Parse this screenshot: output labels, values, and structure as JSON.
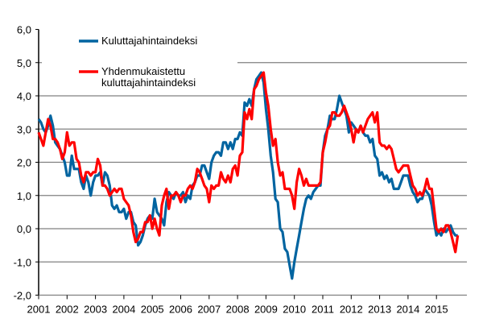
{
  "chart_data": {
    "type": "line",
    "title": "",
    "xlabel": "",
    "ylabel": "",
    "ylim": [
      -2.0,
      6.0
    ],
    "yticks": [
      "6,0",
      "5,0",
      "4,0",
      "3,0",
      "2,0",
      "1,0",
      "0,0",
      "-1,0",
      "-2,0"
    ],
    "ytick_values": [
      6,
      5,
      4,
      3,
      2,
      1,
      0,
      -1,
      -2
    ],
    "xticks": [
      "2001",
      "2002",
      "2003",
      "2004",
      "2005",
      "2006",
      "2007",
      "2008",
      "2009",
      "2010",
      "2011",
      "2012",
      "2013",
      "2014",
      "2015"
    ],
    "x_start": "2001-01",
    "frequency": "monthly",
    "grid": true,
    "legend_placement": "top-left",
    "series": [
      {
        "name": "Kuluttajahintaindeksi",
        "color": "#0064a0",
        "values": [
          3.3,
          3.2,
          3.0,
          2.9,
          3.1,
          3.4,
          3.1,
          2.6,
          2.5,
          2.4,
          2.2,
          2.0,
          1.6,
          1.6,
          2.2,
          1.8,
          1.8,
          1.8,
          1.4,
          1.2,
          1.6,
          1.4,
          1.0,
          1.4,
          1.6,
          1.6,
          1.7,
          1.3,
          1.7,
          1.6,
          1.3,
          0.7,
          0.6,
          0.7,
          0.5,
          0.5,
          0.6,
          0.3,
          0.5,
          0.5,
          0.2,
          0.1,
          -0.5,
          -0.4,
          -0.2,
          0.1,
          0.3,
          0.4,
          0.3,
          0.9,
          0.5,
          0.4,
          0.3,
          0.1,
          0.8,
          1.1,
          1.0,
          0.9,
          1.1,
          1.0,
          1.0,
          1.1,
          0.8,
          1.0,
          0.9,
          1.3,
          1.4,
          1.6,
          1.6,
          1.9,
          1.9,
          1.7,
          1.5,
          2.0,
          2.2,
          2.3,
          2.3,
          2.2,
          2.6,
          2.6,
          2.4,
          2.6,
          2.4,
          2.7,
          2.7,
          2.9,
          2.8,
          3.8,
          3.7,
          3.9,
          3.7,
          4.2,
          4.5,
          4.6,
          4.7,
          4.4,
          3.6,
          3.0,
          2.2,
          1.7,
          0.9,
          0.8,
          0.0,
          -0.1,
          -0.6,
          -0.7,
          -1.1,
          -1.5,
          -1.0,
          -0.6,
          -0.2,
          0.2,
          0.6,
          0.9,
          1.0,
          0.9,
          1.1,
          1.2,
          1.3,
          1.3,
          2.3,
          2.8,
          3.0,
          3.4,
          3.3,
          3.3,
          3.6,
          4.0,
          3.8,
          3.6,
          3.4,
          2.9,
          3.2,
          3.1,
          3.0,
          2.9,
          3.1,
          2.9,
          2.8,
          2.8,
          2.6,
          2.7,
          2.2,
          2.1,
          1.6,
          1.7,
          1.5,
          1.6,
          1.4,
          1.5,
          1.2,
          1.2,
          1.2,
          1.4,
          1.6,
          1.6,
          1.6,
          1.3,
          1.1,
          1.0,
          0.8,
          0.9,
          0.9,
          1.2,
          1.1,
          1.0,
          0.7,
          0.2,
          -0.2,
          -0.1,
          -0.2,
          0.0,
          -0.1,
          0.0,
          0.1,
          -0.1,
          -0.2,
          -0.2
        ]
      },
      {
        "name": "Yhdenmukaistettu kuluttajahintaindeksi",
        "color": "#ff0000",
        "values": [
          2.9,
          2.7,
          2.5,
          2.9,
          3.3,
          3.1,
          2.7,
          2.7,
          2.6,
          2.4,
          2.1,
          2.3,
          2.9,
          2.5,
          2.6,
          2.6,
          2.1,
          2.0,
          1.6,
          1.4,
          1.7,
          1.7,
          1.6,
          1.7,
          1.7,
          2.1,
          1.9,
          1.3,
          1.3,
          1.2,
          1.0,
          1.1,
          1.2,
          1.1,
          1.2,
          1.2,
          0.9,
          0.8,
          0.7,
          0.4,
          -0.1,
          -0.4,
          -0.3,
          -0.1,
          -0.1,
          0.2,
          0.2,
          0.4,
          0.0,
          0.3,
          0.0,
          -0.2,
          0.7,
          1.0,
          1.2,
          0.6,
          1.0,
          1.0,
          1.1,
          1.0,
          0.8,
          1.0,
          1.0,
          1.2,
          1.3,
          1.2,
          1.4,
          1.8,
          1.7,
          1.5,
          1.3,
          1.2,
          0.8,
          1.3,
          1.2,
          1.3,
          1.3,
          1.7,
          1.5,
          1.4,
          1.6,
          1.4,
          1.8,
          1.9,
          1.6,
          2.2,
          2.3,
          3.5,
          3.3,
          3.6,
          3.3,
          4.2,
          4.3,
          4.5,
          4.6,
          4.7,
          4.1,
          3.7,
          3.0,
          2.5,
          2.7,
          2.0,
          1.6,
          1.7,
          1.2,
          1.2,
          1.2,
          1.0,
          0.6,
          1.4,
          1.8,
          1.6,
          1.3,
          1.5,
          1.3,
          1.3,
          1.3,
          1.3,
          1.3,
          1.4,
          2.3,
          2.6,
          3.0,
          3.1,
          3.5,
          3.5,
          3.4,
          3.4,
          3.5,
          3.7,
          3.5,
          3.3,
          3.0,
          2.6,
          3.0,
          2.9,
          3.1,
          2.9,
          3.1,
          3.3,
          3.4,
          3.5,
          3.2,
          3.5,
          2.6,
          2.5,
          2.5,
          2.4,
          2.5,
          2.4,
          2.1,
          1.8,
          1.7,
          1.8,
          1.9,
          1.9,
          1.9,
          1.6,
          1.3,
          1.2,
          1.0,
          1.1,
          1.0,
          1.2,
          1.5,
          1.2,
          1.2,
          0.6,
          0.0,
          -0.1,
          0.0,
          -0.1,
          0.1,
          0.1,
          -0.1,
          -0.4,
          -0.7,
          -0.2
        ]
      }
    ]
  },
  "legend": {
    "item1": "Kuluttajahintaindeksi",
    "item2_line1": "Yhdenmukaistettu",
    "item2_line2": "kuluttajahintaindeksi"
  }
}
